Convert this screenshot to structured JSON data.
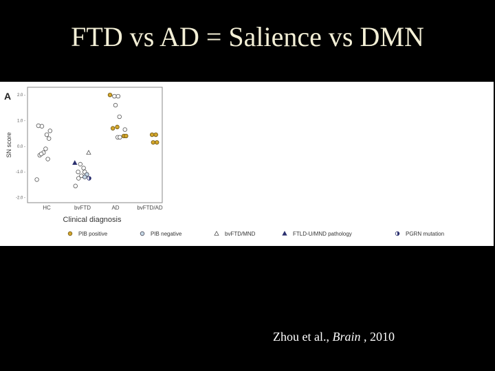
{
  "slide": {
    "title": "FTD vs AD = Salience vs DMN",
    "citation": {
      "authors": "Zhou et al.,",
      "journal": "Brain",
      "year": ", 2010"
    }
  },
  "chart_data": {
    "type": "scatter",
    "panel_label": "A",
    "xlabel": "Clinical diagnosis",
    "ylabel": "SN score",
    "categories": [
      "HC",
      "bvFTD",
      "AD",
      "bvFTD/AD"
    ],
    "yticks": [
      2.0,
      1.0,
      0.0,
      -1.0,
      -2.0
    ],
    "ytick_labels": [
      "2.0 -",
      "1.0 -",
      "0.0 -",
      "-1.0 -",
      "-2.0 -"
    ],
    "ylim": [
      -2.2,
      2.3
    ],
    "grid": false,
    "legend_position": "bottom",
    "colors": {
      "pib_positive": "#d4a72c",
      "pib_negative_fill": "#c6d9e6",
      "dark": "#2a2f6e",
      "axis": "#888888"
    },
    "legend": [
      {
        "label": "PIB positive",
        "marker": "circle-yellow"
      },
      {
        "label": "PIB negative",
        "marker": "circle-blue"
      },
      {
        "label": "bvFTD/MND",
        "marker": "triangle-open"
      },
      {
        "label": "FTLD-U/MND pathology",
        "marker": "triangle-filled"
      },
      {
        "label": "PGRN mutation",
        "marker": "half-circle"
      }
    ],
    "points": [
      {
        "group": "HC",
        "offset": -0.38,
        "y": 0.8,
        "marker": "circle-open"
      },
      {
        "group": "HC",
        "offset": -0.22,
        "y": 0.78,
        "marker": "circle-open"
      },
      {
        "group": "HC",
        "offset": 0.15,
        "y": 0.6,
        "marker": "circle-open"
      },
      {
        "group": "HC",
        "offset": 0.0,
        "y": 0.45,
        "marker": "circle-open"
      },
      {
        "group": "HC",
        "offset": 0.1,
        "y": 0.3,
        "marker": "circle-open"
      },
      {
        "group": "HC",
        "offset": -0.05,
        "y": -0.1,
        "marker": "circle-open"
      },
      {
        "group": "HC",
        "offset": -0.15,
        "y": -0.25,
        "marker": "circle-open"
      },
      {
        "group": "HC",
        "offset": -0.32,
        "y": -0.35,
        "marker": "circle-open"
      },
      {
        "group": "HC",
        "offset": -0.25,
        "y": -0.3,
        "marker": "circle-open"
      },
      {
        "group": "HC",
        "offset": 0.05,
        "y": -0.5,
        "marker": "circle-open"
      },
      {
        "group": "HC",
        "offset": -0.45,
        "y": -1.3,
        "marker": "circle-open"
      },
      {
        "group": "bvFTD",
        "offset": 0.28,
        "y": -0.25,
        "marker": "triangle-open"
      },
      {
        "group": "bvFTD",
        "offset": -0.35,
        "y": -0.65,
        "marker": "triangle-filled"
      },
      {
        "group": "bvFTD",
        "offset": -0.1,
        "y": -0.7,
        "marker": "circle-open"
      },
      {
        "group": "bvFTD",
        "offset": 0.05,
        "y": -0.85,
        "marker": "circle-open"
      },
      {
        "group": "bvFTD",
        "offset": -0.2,
        "y": -1.0,
        "marker": "circle-open"
      },
      {
        "group": "bvFTD",
        "offset": 0.1,
        "y": -1.0,
        "marker": "circle-open"
      },
      {
        "group": "bvFTD",
        "offset": 0.2,
        "y": -1.1,
        "marker": "circle-blue"
      },
      {
        "group": "bvFTD",
        "offset": -0.05,
        "y": -1.15,
        "marker": "circle-open"
      },
      {
        "group": "bvFTD",
        "offset": 0.1,
        "y": -1.2,
        "marker": "circle-blue"
      },
      {
        "group": "bvFTD",
        "offset": -0.18,
        "y": -1.25,
        "marker": "circle-open"
      },
      {
        "group": "bvFTD",
        "offset": 0.3,
        "y": -1.25,
        "marker": "half-circle"
      },
      {
        "group": "bvFTD",
        "offset": -0.32,
        "y": -1.55,
        "marker": "circle-open"
      },
      {
        "group": "AD",
        "offset": -0.25,
        "y": 2.0,
        "marker": "circle-yellow"
      },
      {
        "group": "AD",
        "offset": -0.05,
        "y": 1.95,
        "marker": "circle-open"
      },
      {
        "group": "AD",
        "offset": 0.12,
        "y": 1.95,
        "marker": "circle-open"
      },
      {
        "group": "AD",
        "offset": 0.0,
        "y": 1.6,
        "marker": "circle-open"
      },
      {
        "group": "AD",
        "offset": 0.18,
        "y": 1.15,
        "marker": "circle-open"
      },
      {
        "group": "AD",
        "offset": 0.08,
        "y": 0.75,
        "marker": "circle-yellow"
      },
      {
        "group": "AD",
        "offset": -0.12,
        "y": 0.7,
        "marker": "circle-yellow"
      },
      {
        "group": "AD",
        "offset": 0.43,
        "y": 0.65,
        "marker": "circle-open"
      },
      {
        "group": "AD",
        "offset": 0.38,
        "y": 0.4,
        "marker": "circle-yellow"
      },
      {
        "group": "AD",
        "offset": 0.48,
        "y": 0.4,
        "marker": "circle-yellow"
      },
      {
        "group": "AD",
        "offset": 0.1,
        "y": 0.35,
        "marker": "circle-open"
      },
      {
        "group": "AD",
        "offset": 0.2,
        "y": 0.35,
        "marker": "circle-open"
      },
      {
        "group": "bvFTD/AD",
        "offset": 0.1,
        "y": 0.45,
        "marker": "circle-yellow"
      },
      {
        "group": "bvFTD/AD",
        "offset": 0.27,
        "y": 0.45,
        "marker": "circle-yellow"
      },
      {
        "group": "bvFTD/AD",
        "offset": 0.15,
        "y": 0.15,
        "marker": "circle-yellow"
      },
      {
        "group": "bvFTD/AD",
        "offset": 0.32,
        "y": 0.15,
        "marker": "circle-yellow"
      }
    ]
  }
}
